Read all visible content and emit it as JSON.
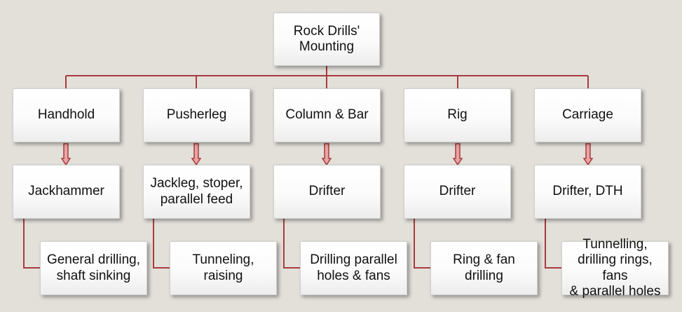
{
  "diagram": {
    "root": "Rock Drills'\nMounting",
    "columns": [
      {
        "mounting": "Handhold",
        "drill": "Jackhammer",
        "use": "General drilling,\nshaft sinking"
      },
      {
        "mounting": "Pusherleg",
        "drill": "Jackleg, stoper,\nparallel feed",
        "use": "Tunneling, raising"
      },
      {
        "mounting": "Column & Bar",
        "drill": "Drifter",
        "use": "Drilling parallel\nholes & fans"
      },
      {
        "mounting": "Rig",
        "drill": "Drifter",
        "use": "Ring & fan drilling"
      },
      {
        "mounting": "Carriage",
        "drill": "Drifter, DTH",
        "use": "Tunnelling,\ndrilling rings, fans\n& parallel holes"
      }
    ],
    "colors": {
      "background": "#e3e0da",
      "connector": "#a83c3c",
      "arrow_fill": "#e8a4a4"
    }
  }
}
